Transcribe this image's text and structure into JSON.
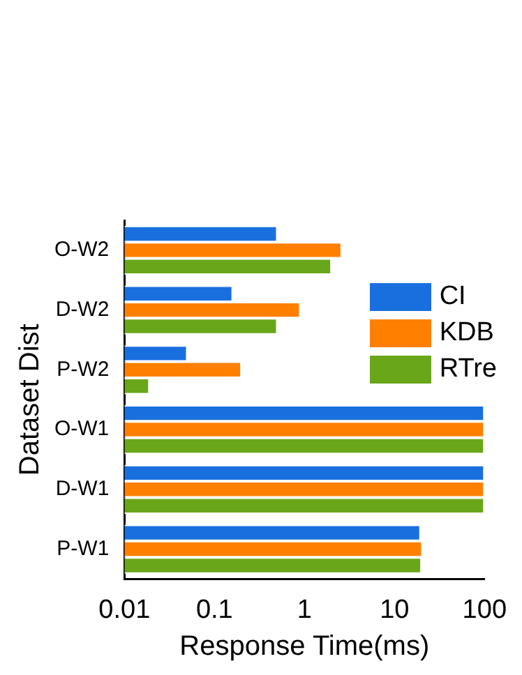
{
  "chart_data": {
    "type": "bar",
    "orientation": "horizontal",
    "xlabel": "Response Time(ms)",
    "ylabel": "Dataset Dist",
    "categories": [
      "O-W2",
      "D-W2",
      "P-W2",
      "O-W1",
      "D-W1",
      "P-W1"
    ],
    "series": [
      {
        "name": "CI",
        "color": "#1a6fdf",
        "values": [
          0.5,
          0.16,
          0.05,
          100,
          100,
          19.5
        ]
      },
      {
        "name": "KDB",
        "color": "#ff8000",
        "values": [
          2.6,
          0.9,
          0.2,
          100,
          100,
          20.5
        ]
      },
      {
        "name": "RTre",
        "color": "#6aa61a",
        "values": [
          2.0,
          0.5,
          0.019,
          100,
          100,
          20
        ]
      }
    ],
    "log": "x",
    "xlim": [
      0.01,
      100
    ],
    "xticks": [
      0.01,
      0.1,
      1,
      10,
      100
    ],
    "legend": "top right"
  }
}
